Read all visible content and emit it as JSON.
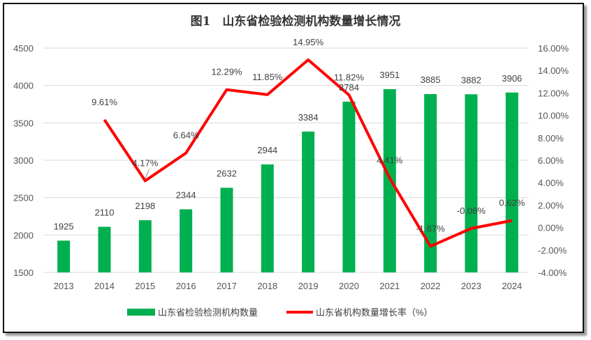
{
  "chart_data": {
    "type": "bar+line",
    "title": "图1　山东省检验检测机构数量增长情况",
    "categories": [
      "2013",
      "2014",
      "2015",
      "2016",
      "2017",
      "2018",
      "2019",
      "2020",
      "2021",
      "2022",
      "2023",
      "2024"
    ],
    "series": [
      {
        "name": "山东省检验检测机构数量",
        "type": "bar",
        "axis": "left",
        "color": "#00B050",
        "values": [
          1925,
          2110,
          2198,
          2344,
          2632,
          2944,
          3384,
          3784,
          3951,
          3885,
          3882,
          3906
        ],
        "labels": [
          "1925",
          "2110",
          "2198",
          "2344",
          "2632",
          "2944",
          "3384",
          "3784",
          "3951",
          "3885",
          "3882",
          "3906"
        ]
      },
      {
        "name": "山东省机构数量增长率（%）",
        "type": "line",
        "axis": "right",
        "color": "#FF0000",
        "values": [
          null,
          9.61,
          4.17,
          6.64,
          12.29,
          11.85,
          14.95,
          11.82,
          4.41,
          -1.67,
          -0.08,
          0.62
        ],
        "labels": [
          "",
          "9.61%",
          "4.17%",
          "6.64%",
          "12.29%",
          "11.85%",
          "14.95%",
          "11.82%",
          "4.41%",
          "-1.67%",
          "-0.08%",
          "0.62%"
        ]
      }
    ],
    "y_left": {
      "range": [
        1500,
        4500
      ],
      "ticks": [
        "1500",
        "2000",
        "2500",
        "3000",
        "3500",
        "4000",
        "4500"
      ]
    },
    "y_right": {
      "range": [
        -4,
        16
      ],
      "ticks": [
        "-4.00%",
        "-2.00%",
        "0.00%",
        "2.00%",
        "4.00%",
        "6.00%",
        "8.00%",
        "10.00%",
        "12.00%",
        "14.00%",
        "16.00%"
      ]
    },
    "grid": true,
    "legend_position": "bottom"
  }
}
